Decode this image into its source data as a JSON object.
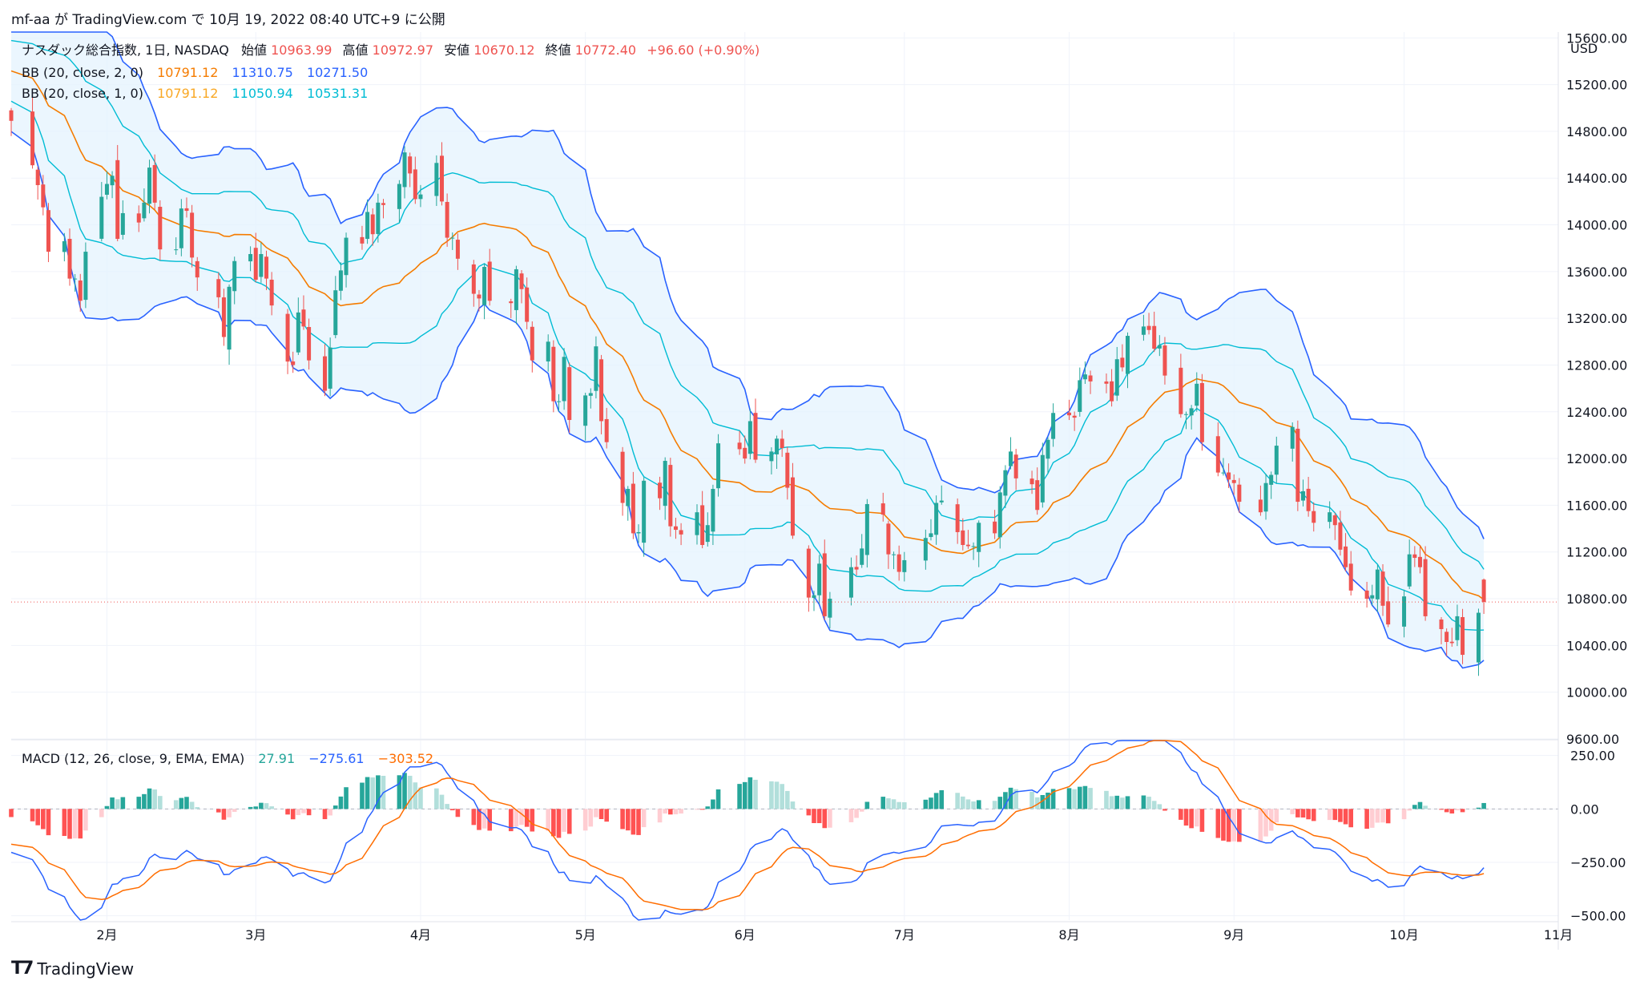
{
  "header": {
    "caption": "mf-aa が TradingView.com で 10月 19, 2022 08:40 UTC+9 に公開"
  },
  "footer": {
    "brand": "TradingView",
    "logo": "tv-logo-icon"
  },
  "colors": {
    "up": "#26a69a",
    "down": "#ef5350",
    "bb_outer": "#2962ff",
    "bb_inner": "#00bcd4",
    "bb_basis": "#f57c00",
    "bb_fill": "#e3f2fd",
    "macd": "#2962ff",
    "signal": "#ff6d00",
    "hist_up_strong": "#26a69a",
    "hist_up_weak": "#b2dfdb",
    "hist_down_strong": "#ff5252",
    "hist_down_weak": "#ffcdd2",
    "price_line": "#ef5350"
  },
  "chart_data": [
    {
      "type": "candlestick",
      "legend": {
        "symbol": "ナスダック総合指数, 1日, NASDAQ",
        "open_label": "始値",
        "open": "10963.99",
        "high_label": "高値",
        "high": "10972.97",
        "low_label": "安値",
        "low": "10670.12",
        "close_label": "終値",
        "close": "10772.40",
        "change": "+96.60 (+0.90%)",
        "bb2_label": "BB (20, close, 2, 0)",
        "bb2_basis": "10791.12",
        "bb2_upper": "11310.75",
        "bb2_lower": "10271.50",
        "bb1_label": "BB (20, close, 1, 0)",
        "bb1_basis": "10791.12",
        "bb1_upper": "11050.94",
        "bb1_lower": "10531.31"
      },
      "currency": "USD",
      "y_ticks": [
        "15600.00",
        "15200.00",
        "14800.00",
        "14400.00",
        "14000.00",
        "13600.00",
        "13200.00",
        "12800.00",
        "12400.00",
        "12000.00",
        "11600.00",
        "11200.00",
        "10800.00",
        "10400.00",
        "10000.00",
        "9600.00"
      ],
      "ylim": [
        9600,
        15650
      ],
      "x_ticks": [
        {
          "label": "2月",
          "date": "2022-02-01"
        },
        {
          "label": "3月",
          "date": "2022-03-01"
        },
        {
          "label": "4月",
          "date": "2022-04-01"
        },
        {
          "label": "5月",
          "date": "2022-05-02"
        },
        {
          "label": "6月",
          "date": "2022-06-01"
        },
        {
          "label": "7月",
          "date": "2022-07-01"
        },
        {
          "label": "8月",
          "date": "2022-08-01"
        },
        {
          "label": "9月",
          "date": "2022-09-01"
        },
        {
          "label": "10月",
          "date": "2022-10-03"
        },
        {
          "label": "11月",
          "date": "2022-11-01"
        }
      ],
      "xlim": [
        "2022-01-14",
        "2022-11-01"
      ],
      "last_close": 10772.4,
      "closes": [
        [
          "2022-01-14",
          14890
        ],
        [
          "2022-01-18",
          14510
        ],
        [
          "2022-01-19",
          14340
        ],
        [
          "2022-01-20",
          14150
        ],
        [
          "2022-01-21",
          13770
        ],
        [
          "2022-01-24",
          13860
        ],
        [
          "2022-01-25",
          13540
        ],
        [
          "2022-01-26",
          13540
        ],
        [
          "2022-01-27",
          13350
        ],
        [
          "2022-01-28",
          13770
        ],
        [
          "2022-01-31",
          14240
        ],
        [
          "2022-02-01",
          14350
        ],
        [
          "2022-02-02",
          14420
        ],
        [
          "2022-02-03",
          13880
        ],
        [
          "2022-02-04",
          14100
        ],
        [
          "2022-02-07",
          14020
        ],
        [
          "2022-02-08",
          14190
        ],
        [
          "2022-02-09",
          14490
        ],
        [
          "2022-02-10",
          14190
        ],
        [
          "2022-02-11",
          13790
        ],
        [
          "2022-02-14",
          13790
        ],
        [
          "2022-02-15",
          14140
        ],
        [
          "2022-02-16",
          14120
        ],
        [
          "2022-02-17",
          13720
        ],
        [
          "2022-02-18",
          13550
        ],
        [
          "2022-02-22",
          13380
        ],
        [
          "2022-02-23",
          13040
        ],
        [
          "2022-02-24",
          13470
        ],
        [
          "2022-02-25",
          13690
        ],
        [
          "2022-02-28",
          13750
        ],
        [
          "2022-03-01",
          13530
        ],
        [
          "2022-03-02",
          13750
        ],
        [
          "2022-03-03",
          13540
        ],
        [
          "2022-03-04",
          13310
        ],
        [
          "2022-03-07",
          12830
        ],
        [
          "2022-03-08",
          12800
        ],
        [
          "2022-03-09",
          13250
        ],
        [
          "2022-03-10",
          13130
        ],
        [
          "2022-03-11",
          12840
        ],
        [
          "2022-03-14",
          12580
        ],
        [
          "2022-03-15",
          12950
        ],
        [
          "2022-03-16",
          13440
        ],
        [
          "2022-03-17",
          13610
        ],
        [
          "2022-03-18",
          13890
        ],
        [
          "2022-03-21",
          13840
        ],
        [
          "2022-03-22",
          14110
        ],
        [
          "2022-03-23",
          13920
        ],
        [
          "2022-03-24",
          14190
        ],
        [
          "2022-03-25",
          14170
        ],
        [
          "2022-03-28",
          14350
        ],
        [
          "2022-03-29",
          14620
        ],
        [
          "2022-03-30",
          14440
        ],
        [
          "2022-03-31",
          14220
        ],
        [
          "2022-04-01",
          14260
        ],
        [
          "2022-04-04",
          14530
        ],
        [
          "2022-04-05",
          14200
        ],
        [
          "2022-04-06",
          13890
        ],
        [
          "2022-04-07",
          13890
        ],
        [
          "2022-04-08",
          13710
        ],
        [
          "2022-04-11",
          13410
        ],
        [
          "2022-04-12",
          13370
        ],
        [
          "2022-04-13",
          13640
        ],
        [
          "2022-04-14",
          13350
        ],
        [
          "2022-04-18",
          13330
        ],
        [
          "2022-04-19",
          13620
        ],
        [
          "2022-04-20",
          13450
        ],
        [
          "2022-04-21",
          13170
        ],
        [
          "2022-04-22",
          12840
        ],
        [
          "2022-04-25",
          13000
        ],
        [
          "2022-04-26",
          12490
        ],
        [
          "2022-04-27",
          12490
        ],
        [
          "2022-04-28",
          12870
        ],
        [
          "2022-04-29",
          12330
        ],
        [
          "2022-05-02",
          12540
        ],
        [
          "2022-05-03",
          12560
        ],
        [
          "2022-05-04",
          12960
        ],
        [
          "2022-05-05",
          12320
        ],
        [
          "2022-05-06",
          12140
        ],
        [
          "2022-05-09",
          11620
        ],
        [
          "2022-05-10",
          11740
        ],
        [
          "2022-05-11",
          11360
        ],
        [
          "2022-05-12",
          11370
        ],
        [
          "2022-05-13",
          11810
        ],
        [
          "2022-05-16",
          11660
        ],
        [
          "2022-05-17",
          11980
        ],
        [
          "2022-05-18",
          11420
        ],
        [
          "2022-05-19",
          11390
        ],
        [
          "2022-05-20",
          11350
        ],
        [
          "2022-05-23",
          11540
        ],
        [
          "2022-05-24",
          11260
        ],
        [
          "2022-05-25",
          11430
        ],
        [
          "2022-05-26",
          11740
        ],
        [
          "2022-05-27",
          12130
        ],
        [
          "2022-05-31",
          12080
        ],
        [
          "2022-06-01",
          12000
        ],
        [
          "2022-06-02",
          12320
        ],
        [
          "2022-06-03",
          11990
        ],
        [
          "2022-06-06",
          12060
        ],
        [
          "2022-06-07",
          12170
        ],
        [
          "2022-06-08",
          12090
        ],
        [
          "2022-06-09",
          11750
        ],
        [
          "2022-06-10",
          11340
        ],
        [
          "2022-06-13",
          10810
        ],
        [
          "2022-06-14",
          10830
        ],
        [
          "2022-06-15",
          11100
        ],
        [
          "2022-06-16",
          10650
        ],
        [
          "2022-06-17",
          10800
        ],
        [
          "2022-06-21",
          11070
        ],
        [
          "2022-06-22",
          11050
        ],
        [
          "2022-06-23",
          11230
        ],
        [
          "2022-06-24",
          11610
        ],
        [
          "2022-06-27",
          11520
        ],
        [
          "2022-06-28",
          11180
        ],
        [
          "2022-06-29",
          11180
        ],
        [
          "2022-06-30",
          11030
        ],
        [
          "2022-07-01",
          11130
        ],
        [
          "2022-07-05",
          11320
        ],
        [
          "2022-07-06",
          11360
        ],
        [
          "2022-07-07",
          11620
        ],
        [
          "2022-07-08",
          11640
        ],
        [
          "2022-07-11",
          11370
        ],
        [
          "2022-07-12",
          11260
        ],
        [
          "2022-07-13",
          11250
        ],
        [
          "2022-07-14",
          11250
        ],
        [
          "2022-07-15",
          11450
        ],
        [
          "2022-07-18",
          11360
        ],
        [
          "2022-07-19",
          11710
        ],
        [
          "2022-07-20",
          11900
        ],
        [
          "2022-07-21",
          12060
        ],
        [
          "2022-07-22",
          11830
        ],
        [
          "2022-07-25",
          11780
        ],
        [
          "2022-07-26",
          11560
        ],
        [
          "2022-07-27",
          12030
        ],
        [
          "2022-07-28",
          12160
        ],
        [
          "2022-07-29",
          12390
        ],
        [
          "2022-08-01",
          12370
        ],
        [
          "2022-08-02",
          12350
        ],
        [
          "2022-08-03",
          12670
        ],
        [
          "2022-08-04",
          12720
        ],
        [
          "2022-08-05",
          12660
        ],
        [
          "2022-08-08",
          12640
        ],
        [
          "2022-08-09",
          12490
        ],
        [
          "2022-08-10",
          12850
        ],
        [
          "2022-08-11",
          12780
        ],
        [
          "2022-08-12",
          13050
        ],
        [
          "2022-08-15",
          13130
        ],
        [
          "2022-08-16",
          13100
        ],
        [
          "2022-08-17",
          12940
        ],
        [
          "2022-08-18",
          12970
        ],
        [
          "2022-08-19",
          12710
        ],
        [
          "2022-08-22",
          12380
        ],
        [
          "2022-08-23",
          12380
        ],
        [
          "2022-08-24",
          12430
        ],
        [
          "2022-08-25",
          12640
        ],
        [
          "2022-08-26",
          12140
        ],
        [
          "2022-08-29",
          11880
        ],
        [
          "2022-08-30",
          11880
        ],
        [
          "2022-08-31",
          11820
        ],
        [
          "2022-09-01",
          11790
        ],
        [
          "2022-09-02",
          11630
        ],
        [
          "2022-09-06",
          11540
        ],
        [
          "2022-09-07",
          11790
        ],
        [
          "2022-09-08",
          11860
        ],
        [
          "2022-09-09",
          12110
        ],
        [
          "2022-09-12",
          12270
        ],
        [
          "2022-09-13",
          11630
        ],
        [
          "2022-09-14",
          11720
        ],
        [
          "2022-09-15",
          11550
        ],
        [
          "2022-09-16",
          11450
        ],
        [
          "2022-09-19",
          11540
        ],
        [
          "2022-09-20",
          11430
        ],
        [
          "2022-09-21",
          11220
        ],
        [
          "2022-09-22",
          11070
        ],
        [
          "2022-09-23",
          10870
        ],
        [
          "2022-09-26",
          10800
        ],
        [
          "2022-09-27",
          10830
        ],
        [
          "2022-09-28",
          11050
        ],
        [
          "2022-09-29",
          10740
        ],
        [
          "2022-09-30",
          10580
        ],
        [
          "2022-10-03",
          10820
        ],
        [
          "2022-10-04",
          11180
        ],
        [
          "2022-10-05",
          11150
        ],
        [
          "2022-10-06",
          11070
        ],
        [
          "2022-10-07",
          10650
        ],
        [
          "2022-10-10",
          10540
        ],
        [
          "2022-10-11",
          10430
        ],
        [
          "2022-10-12",
          10420
        ],
        [
          "2022-10-13",
          10650
        ],
        [
          "2022-10-14",
          10320
        ],
        [
          "2022-10-17",
          10680
        ],
        [
          "2022-10-18",
          10772.4
        ]
      ]
    },
    {
      "type": "macd",
      "legend": {
        "label": "MACD (12, 26, close, 9, EMA, EMA)",
        "hist": "27.91",
        "macd": "−275.61",
        "signal": "−303.52"
      },
      "y_ticks": [
        "250.00",
        "0.00",
        "−250.00",
        "−500.00"
      ],
      "ylim": [
        -520,
        320
      ]
    }
  ]
}
